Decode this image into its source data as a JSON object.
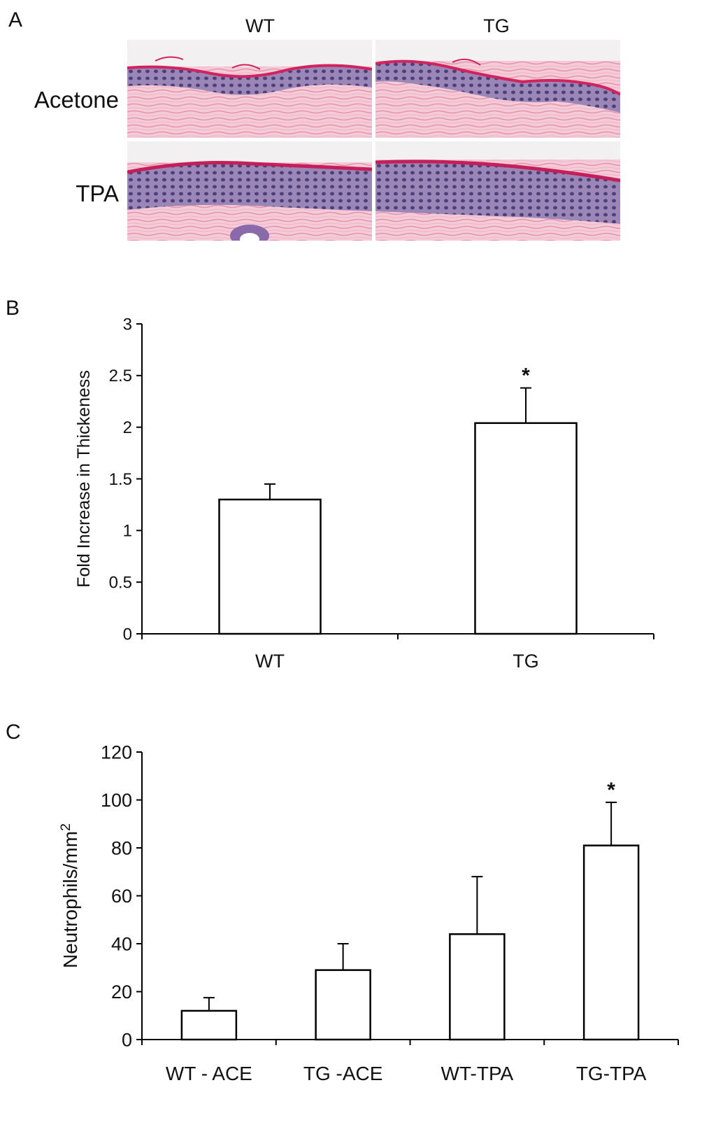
{
  "figure": {
    "panel_a": {
      "letter": "A",
      "columns": [
        "WT",
        "TG"
      ],
      "rows": [
        "Acetone",
        "TPA"
      ],
      "tiles": [
        {
          "name": "wt-acetone",
          "label": "WT Acetone H&E micrograph"
        },
        {
          "name": "tg-acetone",
          "label": "TG Acetone H&E micrograph"
        },
        {
          "name": "wt-tpa",
          "label": "WT TPA H&E micrograph"
        },
        {
          "name": "tg-tpa",
          "label": "TG TPA H&E micrograph"
        }
      ]
    },
    "panel_b": {
      "letter": "B"
    },
    "panel_c": {
      "letter": "C"
    }
  },
  "chart_data": [
    {
      "type": "bar",
      "panel": "B",
      "categories": [
        "WT",
        "TG"
      ],
      "values": [
        1.3,
        2.04
      ],
      "errors": [
        0.15,
        0.34
      ],
      "significance": [
        "",
        "*"
      ],
      "ylabel": "Fold Increase in Thickeness",
      "xlabel": "",
      "ylim": [
        0,
        3
      ],
      "yticks": [
        0,
        0.5,
        1,
        1.5,
        2,
        2.5,
        3
      ],
      "ytick_labels": [
        "0",
        "0.5",
        "1",
        "1.5",
        "2",
        "2.5",
        "3"
      ],
      "bar_fill": "#ffffff",
      "bar_stroke": "#000000",
      "grid": false
    },
    {
      "type": "bar",
      "panel": "C",
      "categories": [
        "WT - ACE",
        "TG -ACE",
        "WT-TPA",
        "TG-TPA"
      ],
      "values": [
        12,
        29,
        44,
        81
      ],
      "errors": [
        5.5,
        11,
        24,
        18
      ],
      "significance": [
        "",
        "",
        "",
        "*"
      ],
      "ylabel": "Neutrophils/mm",
      "ylabel_superscript": "2",
      "xlabel": "",
      "ylim": [
        0,
        120
      ],
      "yticks": [
        0,
        20,
        40,
        60,
        80,
        100,
        120
      ],
      "ytick_labels": [
        "0",
        "20",
        "40",
        "60",
        "80",
        "100",
        "120"
      ],
      "bar_fill": "#ffffff",
      "bar_stroke": "#000000",
      "grid": false
    }
  ]
}
